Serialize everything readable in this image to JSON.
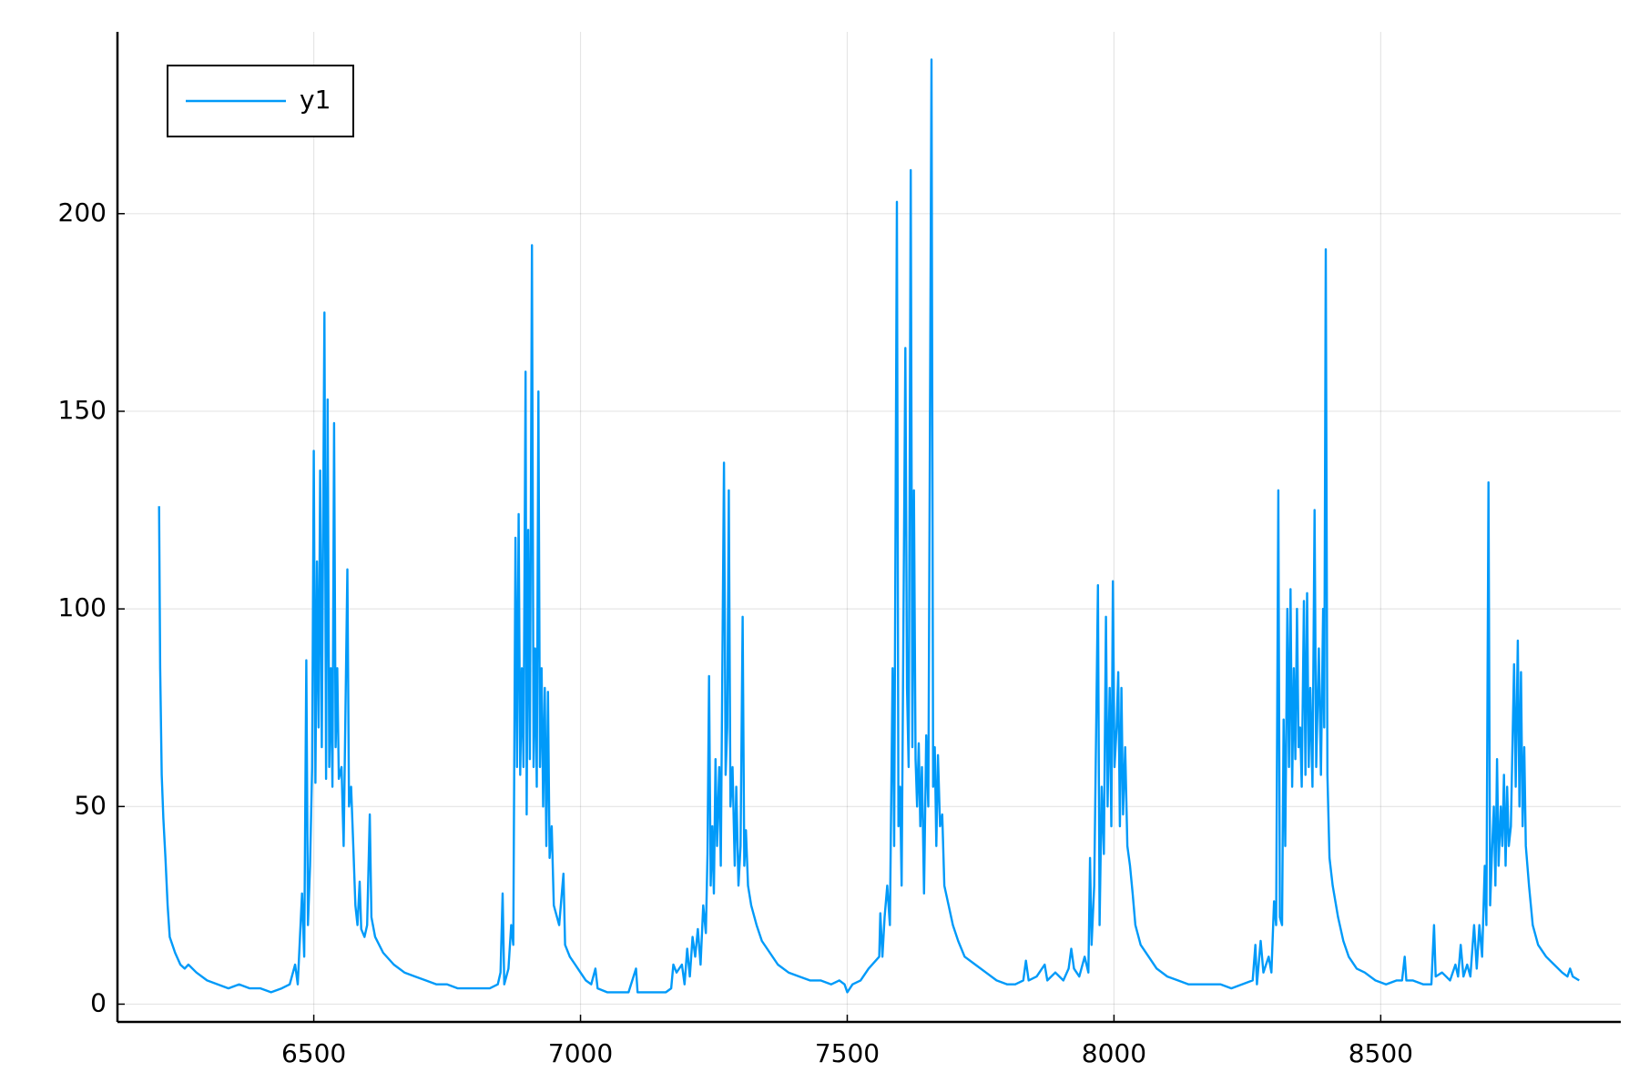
{
  "chart_data": {
    "type": "line",
    "x": [
      6210,
      6212,
      6215,
      6218,
      6222,
      6226,
      6230,
      6240,
      6250,
      6258,
      6265,
      6280,
      6300,
      6320,
      6340,
      6360,
      6380,
      6400,
      6420,
      6440,
      6455,
      6465,
      6470,
      6478,
      6482,
      6486,
      6489,
      6493,
      6497,
      6500,
      6503,
      6506,
      6509,
      6512,
      6515,
      6520,
      6523,
      6526,
      6529,
      6532,
      6535,
      6538,
      6541,
      6544,
      6547,
      6552,
      6556,
      6563,
      6566,
      6570,
      6574,
      6578,
      6582,
      6586,
      6589,
      6595,
      6600,
      6605,
      6608,
      6615,
      6630,
      6650,
      6670,
      6690,
      6710,
      6730,
      6750,
      6770,
      6790,
      6810,
      6830,
      6845,
      6850,
      6854,
      6857,
      6865,
      6870,
      6874,
      6878,
      6881,
      6884,
      6887,
      6890,
      6893,
      6897,
      6899,
      6902,
      6905,
      6909,
      6912,
      6915,
      6918,
      6921,
      6924,
      6927,
      6930,
      6933,
      6936,
      6939,
      6942,
      6946,
      6950,
      6960,
      6968,
      6971,
      6980,
      6990,
      7000,
      7010,
      7020,
      7028,
      7032,
      7050,
      7070,
      7090,
      7104,
      7107,
      7120,
      7140,
      7160,
      7170,
      7174,
      7180,
      7190,
      7195,
      7200,
      7205,
      7210,
      7215,
      7220,
      7225,
      7230,
      7235,
      7238,
      7241,
      7244,
      7247,
      7250,
      7253,
      7256,
      7260,
      7263,
      7269,
      7272,
      7275,
      7278,
      7281,
      7285,
      7289,
      7292,
      7296,
      7300,
      7304,
      7307,
      7310,
      7314,
      7320,
      7330,
      7340,
      7355,
      7370,
      7390,
      7410,
      7430,
      7450,
      7470,
      7485,
      7495,
      7500,
      7510,
      7525,
      7540,
      7560,
      7562,
      7566,
      7570,
      7575,
      7580,
      7585,
      7588,
      7593,
      7596,
      7599,
      7602,
      7605,
      7609,
      7612,
      7615,
      7619,
      7622,
      7625,
      7628,
      7631,
      7634,
      7637,
      7640,
      7644,
      7648,
      7652,
      7658,
      7661,
      7664,
      7667,
      7670,
      7674,
      7678,
      7682,
      7690,
      7698,
      7708,
      7720,
      7740,
      7760,
      7780,
      7800,
      7815,
      7830,
      7835,
      7840,
      7855,
      7870,
      7875,
      7890,
      7905,
      7915,
      7920,
      7925,
      7935,
      7945,
      7952,
      7955,
      7958,
      7963,
      7970,
      7973,
      7977,
      7981,
      7985,
      7988,
      7992,
      7995,
      7998,
      8001,
      8005,
      8008,
      8011,
      8014,
      8017,
      8021,
      8025,
      8030,
      8035,
      8040,
      8050,
      8065,
      8080,
      8100,
      8120,
      8140,
      8160,
      8180,
      8200,
      8220,
      8240,
      8260,
      8265,
      8268,
      8275,
      8280,
      8290,
      8295,
      8300,
      8304,
      8308,
      8311,
      8315,
      8318,
      8321,
      8325,
      8328,
      8331,
      8334,
      8337,
      8340,
      8343,
      8346,
      8349,
      8352,
      8356,
      8359,
      8362,
      8365,
      8368,
      8372,
      8376,
      8379,
      8384,
      8388,
      8392,
      8394,
      8397,
      8400,
      8404,
      8410,
      8420,
      8430,
      8440,
      8455,
      8470,
      8490,
      8510,
      8530,
      8540,
      8545,
      8548,
      8560,
      8580,
      8595,
      8600,
      8603,
      8615,
      8630,
      8640,
      8645,
      8650,
      8655,
      8662,
      8668,
      8675,
      8680,
      8685,
      8690,
      8695,
      8698,
      8702,
      8705,
      8709,
      8712,
      8715,
      8718,
      8721,
      8725,
      8728,
      8731,
      8734,
      8737,
      8740,
      8744,
      8750,
      8753,
      8757,
      8760,
      8763,
      8766,
      8769,
      8772,
      8778,
      8785,
      8795,
      8810,
      8825,
      8840,
      8850,
      8855,
      8860,
      8872
    ],
    "series": [
      {
        "name": "y1",
        "color": "#009af9",
        "values": [
          126,
          85,
          58,
          47,
          37,
          25,
          17,
          13,
          10,
          9,
          10,
          8,
          6,
          5,
          4,
          5,
          4,
          4,
          3,
          4,
          5,
          10,
          5,
          28,
          12,
          87,
          20,
          35,
          60,
          140,
          56,
          112,
          70,
          135,
          65,
          175,
          57,
          153,
          60,
          85,
          55,
          147,
          65,
          85,
          57,
          60,
          40,
          110,
          50,
          55,
          40,
          25,
          20,
          31,
          19,
          17,
          20,
          48,
          22,
          17,
          13,
          10,
          8,
          7,
          6,
          5,
          5,
          4,
          4,
          4,
          4,
          5,
          8,
          28,
          5,
          9,
          20,
          15,
          118,
          60,
          124,
          58,
          85,
          60,
          160,
          48,
          120,
          62,
          192,
          60,
          90,
          55,
          155,
          60,
          85,
          50,
          80,
          40,
          79,
          37,
          45,
          25,
          20,
          33,
          15,
          12,
          10,
          8,
          6,
          5,
          9,
          4,
          3,
          3,
          3,
          9,
          3,
          3,
          3,
          3,
          4,
          10,
          8,
          10,
          5,
          14,
          7,
          17,
          12,
          19,
          10,
          25,
          18,
          38,
          83,
          30,
          45,
          28,
          62,
          40,
          60,
          35,
          137,
          58,
          70,
          130,
          50,
          60,
          35,
          55,
          30,
          40,
          98,
          35,
          44,
          30,
          25,
          20,
          16,
          13,
          10,
          8,
          7,
          6,
          6,
          5,
          6,
          5,
          3,
          5,
          6,
          9,
          12,
          23,
          12,
          22,
          30,
          20,
          85,
          40,
          203,
          45,
          55,
          30,
          90,
          166,
          80,
          60,
          211,
          65,
          130,
          62,
          50,
          66,
          45,
          60,
          28,
          68,
          50,
          239,
          55,
          65,
          40,
          63,
          45,
          48,
          30,
          25,
          20,
          16,
          12,
          10,
          8,
          6,
          5,
          5,
          6,
          11,
          6,
          7,
          10,
          6,
          8,
          6,
          9,
          14,
          9,
          7,
          12,
          8,
          37,
          15,
          30,
          106,
          20,
          55,
          38,
          98,
          50,
          80,
          45,
          107,
          60,
          70,
          84,
          45,
          80,
          48,
          65,
          40,
          35,
          28,
          20,
          15,
          12,
          9,
          7,
          6,
          5,
          5,
          5,
          5,
          4,
          5,
          6,
          15,
          5,
          16,
          8,
          12,
          8,
          26,
          20,
          130,
          22,
          20,
          72,
          40,
          100,
          60,
          105,
          55,
          85,
          62,
          100,
          65,
          70,
          55,
          102,
          58,
          104,
          60,
          80,
          55,
          125,
          60,
          90,
          58,
          100,
          70,
          191,
          58,
          37,
          30,
          22,
          16,
          12,
          9,
          8,
          6,
          5,
          6,
          6,
          12,
          6,
          6,
          5,
          5,
          20,
          7,
          8,
          6,
          10,
          7,
          15,
          7,
          10,
          7,
          20,
          9,
          20,
          12,
          35,
          20,
          132,
          25,
          40,
          50,
          30,
          62,
          35,
          50,
          40,
          58,
          35,
          55,
          40,
          45,
          86,
          55,
          92,
          50,
          84,
          45,
          65,
          40,
          30,
          20,
          15,
          12,
          10,
          8,
          7,
          9,
          7,
          6
        ]
      }
    ],
    "xlim": [
      6132,
      8950
    ],
    "xticks": [
      6500,
      7000,
      7500,
      8000,
      8500
    ],
    "ylim": [
      -4.5,
      246
    ],
    "yticks": [
      0,
      50,
      100,
      150,
      200
    ],
    "grid": true,
    "legend": "top-left"
  }
}
